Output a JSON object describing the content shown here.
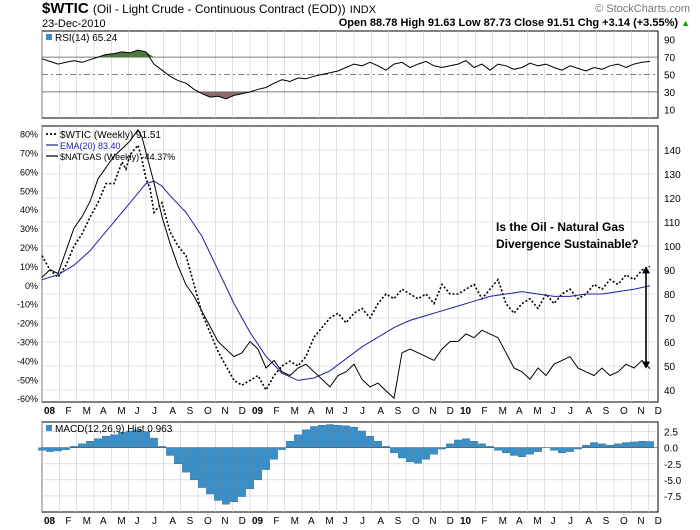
{
  "header": {
    "symbol": "$WTIC",
    "name": "(Oil - Light Crude - Continuous Contract (EOD))",
    "exchange": "INDX",
    "date": "23-Dec-2010",
    "watermark": "© StockCharts.com",
    "ohlc": "Open 88.78   High 91.63   Low 87.73   Close 91.51   Chg +3.14 (+3.55%)",
    "ohlc_icon": "up-triangle-icon"
  },
  "colors": {
    "panel_border": "#000000",
    "grid": "#cccccc",
    "rsi_line": "#000000",
    "rsi_overbought_fill": "#4a7a3a",
    "rsi_oversold_fill": "#8c6a6a",
    "ema_line": "#1f1f9f",
    "macd_hist": "#3a8fc8",
    "text": "#000000"
  },
  "chart_data": [
    {
      "id": "rsi",
      "type": "line",
      "title": "RSI(14) 65.24",
      "ylim": [
        0,
        100
      ],
      "ticks": [
        "90",
        "70",
        "50",
        "30",
        "10"
      ],
      "tick_values": [
        90,
        70,
        50,
        30,
        10
      ],
      "reference_lines": [
        70,
        50,
        30
      ],
      "series": [
        {
          "name": "RSI(14)",
          "x": [
            0,
            2,
            4,
            6,
            8,
            10,
            12,
            14,
            16,
            18,
            20,
            22,
            24,
            26,
            28,
            30,
            32,
            34,
            36,
            38,
            40,
            42,
            44,
            46,
            48,
            50,
            52,
            54,
            56,
            58,
            60,
            62,
            64,
            66,
            68,
            70,
            72,
            74,
            76,
            78,
            80,
            82,
            84,
            86,
            88,
            90,
            92,
            94,
            96,
            98,
            100,
            102,
            104,
            106,
            108,
            110,
            112,
            114,
            116,
            118,
            120,
            122,
            124,
            126,
            128,
            130,
            132,
            134,
            136,
            138,
            140,
            142,
            144,
            146,
            148,
            150,
            152
          ],
          "values": [
            68,
            65,
            62,
            64,
            66,
            64,
            67,
            70,
            73,
            74,
            76,
            75,
            78,
            76,
            62,
            55,
            48,
            43,
            40,
            33,
            28,
            24,
            25,
            22,
            26,
            28,
            30,
            33,
            35,
            40,
            44,
            42,
            46,
            45,
            48,
            50,
            52,
            54,
            58,
            62,
            60,
            64,
            60,
            55,
            62,
            64,
            58,
            62,
            65,
            60,
            58,
            60,
            62,
            66,
            58,
            62,
            55,
            62,
            60,
            56,
            58,
            63,
            60,
            62,
            58,
            55,
            60,
            57,
            54,
            58,
            56,
            60,
            62,
            58,
            62,
            64,
            65
          ]
        }
      ]
    },
    {
      "id": "price",
      "type": "line",
      "annotation": "Is the Oil - Natural Gas\nDivergence Sustainable?",
      "ylim_right": [
        35,
        150
      ],
      "ylim_left_pct": [
        -62,
        84
      ],
      "ticks_right": [
        "140",
        "130",
        "120",
        "110",
        "100",
        "90",
        "80",
        "70",
        "60",
        "50",
        "40"
      ],
      "tick_values_right": [
        140,
        130,
        120,
        110,
        100,
        90,
        80,
        70,
        60,
        50,
        40
      ],
      "ticks_left": [
        "80%",
        "70%",
        "60%",
        "50%",
        "40%",
        "30%",
        "20%",
        "10%",
        "0%",
        "-10%",
        "-20%",
        "-30%",
        "-40%",
        "-50%",
        "-60%"
      ],
      "tick_values_left": [
        80,
        70,
        60,
        50,
        40,
        30,
        20,
        10,
        0,
        -10,
        -20,
        -30,
        -40,
        -50,
        -60
      ],
      "x_ticks": [
        "08",
        "F",
        "M",
        "A",
        "M",
        "J",
        "J",
        "A",
        "S",
        "O",
        "N",
        "D",
        "09",
        "F",
        "M",
        "A",
        "M",
        "J",
        "J",
        "A",
        "S",
        "O",
        "N",
        "D",
        "10",
        "F",
        "M",
        "A",
        "M",
        "J",
        "J",
        "A",
        "S",
        "O",
        "N",
        "D"
      ],
      "x_tick_positions": [
        0,
        4.33,
        8.67,
        13,
        17.33,
        21.67,
        26,
        30.33,
        34.67,
        39,
        43.33,
        47.67,
        52,
        56.33,
        60.67,
        65,
        69.33,
        73.67,
        78,
        82.33,
        86.67,
        91,
        95.33,
        99.67,
        104,
        108.33,
        112.67,
        117,
        121.33,
        125.67,
        130,
        134.33,
        138.67,
        143,
        147.33,
        151.67
      ],
      "xlim": [
        0,
        154
      ],
      "series": [
        {
          "name": "$WTIC (Weekly) 91.51",
          "style": "dotted",
          "axis": "right",
          "x": [
            0,
            2,
            4,
            6,
            8,
            10,
            12,
            14,
            16,
            18,
            20,
            21,
            22,
            23,
            24,
            25,
            26,
            27,
            28,
            30,
            32,
            34,
            36,
            38,
            40,
            42,
            44,
            46,
            48,
            50,
            52,
            54,
            56,
            58,
            60,
            62,
            64,
            66,
            68,
            70,
            72,
            74,
            76,
            78,
            80,
            82,
            84,
            86,
            88,
            90,
            92,
            94,
            96,
            98,
            100,
            102,
            104,
            106,
            108,
            110,
            112,
            114,
            116,
            118,
            120,
            122,
            124,
            126,
            128,
            130,
            132,
            134,
            136,
            138,
            140,
            142,
            144,
            146,
            148,
            150,
            152
          ],
          "values": [
            96,
            90,
            87,
            92,
            100,
            105,
            112,
            118,
            126,
            126,
            135,
            132,
            138,
            140,
            142,
            136,
            128,
            124,
            114,
            118,
            106,
            100,
            96,
            84,
            72,
            64,
            56,
            50,
            44,
            42,
            44,
            46,
            40,
            46,
            50,
            52,
            50,
            54,
            62,
            66,
            70,
            72,
            68,
            72,
            74,
            70,
            76,
            80,
            78,
            82,
            80,
            78,
            80,
            76,
            84,
            80,
            80,
            82,
            84,
            78,
            82,
            86,
            76,
            72,
            76,
            78,
            74,
            80,
            76,
            80,
            82,
            78,
            80,
            84,
            82,
            86,
            84,
            88,
            86,
            90,
            91.51
          ]
        },
        {
          "name": "EMA(20) 83.40",
          "style": "solid",
          "axis": "right",
          "x": [
            0,
            4,
            8,
            12,
            16,
            20,
            24,
            26,
            28,
            30,
            32,
            36,
            40,
            44,
            48,
            52,
            56,
            60,
            64,
            68,
            72,
            76,
            80,
            84,
            88,
            92,
            96,
            100,
            104,
            108,
            112,
            116,
            120,
            124,
            128,
            132,
            136,
            140,
            144,
            148,
            152
          ],
          "values": [
            86,
            88,
            92,
            98,
            106,
            114,
            122,
            126,
            127,
            125,
            121,
            114,
            104,
            90,
            76,
            64,
            54,
            47,
            44,
            45,
            48,
            53,
            58,
            62,
            66,
            69,
            71,
            73,
            75,
            77,
            79,
            80,
            81,
            80,
            79,
            79,
            80,
            80,
            81,
            82,
            83.4
          ]
        },
        {
          "name": "$NATGAS (Weekly) -44.37%",
          "style": "solid",
          "axis": "left",
          "x": [
            0,
            2,
            4,
            6,
            8,
            10,
            12,
            14,
            16,
            18,
            20,
            22,
            24,
            25,
            26,
            27,
            28,
            30,
            32,
            34,
            36,
            38,
            40,
            42,
            44,
            46,
            48,
            50,
            52,
            54,
            56,
            58,
            60,
            62,
            64,
            66,
            68,
            70,
            72,
            74,
            76,
            78,
            80,
            82,
            84,
            86,
            88,
            90,
            92,
            94,
            96,
            98,
            100,
            102,
            104,
            106,
            108,
            110,
            112,
            114,
            116,
            118,
            120,
            122,
            124,
            126,
            128,
            130,
            132,
            134,
            136,
            138,
            140,
            142,
            144,
            146,
            148,
            150,
            152
          ],
          "values": [
            4,
            8,
            6,
            18,
            30,
            36,
            44,
            56,
            62,
            68,
            72,
            76,
            82,
            78,
            70,
            62,
            54,
            36,
            22,
            10,
            0,
            -6,
            -14,
            -22,
            -30,
            -34,
            -38,
            -36,
            -30,
            -34,
            -44,
            -40,
            -46,
            -48,
            -44,
            -42,
            -46,
            -50,
            -54,
            -48,
            -46,
            -42,
            -50,
            -54,
            -52,
            -56,
            -60,
            -36,
            -34,
            -36,
            -38,
            -40,
            -34,
            -30,
            -30,
            -26,
            -28,
            -24,
            -26,
            -28,
            -36,
            -44,
            -46,
            -50,
            -44,
            -48,
            -42,
            -40,
            -38,
            -44,
            -46,
            -48,
            -44,
            -48,
            -46,
            -42,
            -44,
            -40,
            -44.37
          ]
        }
      ]
    },
    {
      "id": "macd",
      "type": "bar",
      "title": "MACD(12,26,9) Hist 0.963",
      "ylim": [
        -10,
        4
      ],
      "ticks": [
        "2.5",
        "0.0",
        "-2.5",
        "-5.0",
        "-7.5"
      ],
      "tick_values": [
        2.5,
        0,
        -2.5,
        -5,
        -7.5
      ],
      "x": [
        0,
        2,
        4,
        6,
        8,
        10,
        12,
        14,
        16,
        18,
        20,
        22,
        24,
        26,
        28,
        30,
        32,
        34,
        36,
        38,
        40,
        42,
        44,
        46,
        48,
        50,
        52,
        54,
        56,
        58,
        60,
        62,
        64,
        66,
        68,
        70,
        72,
        74,
        76,
        78,
        80,
        82,
        84,
        86,
        88,
        90,
        92,
        94,
        96,
        98,
        100,
        102,
        104,
        106,
        108,
        110,
        112,
        114,
        116,
        118,
        120,
        122,
        124,
        126,
        128,
        130,
        132,
        134,
        136,
        138,
        140,
        142,
        144,
        146,
        148,
        150,
        152
      ],
      "values": [
        -0.4,
        -0.6,
        -0.5,
        -0.3,
        0.2,
        0.6,
        1.0,
        1.4,
        1.8,
        2.0,
        2.4,
        2.6,
        2.8,
        2.5,
        1.5,
        0.2,
        -1.2,
        -2.5,
        -3.8,
        -5.0,
        -6.2,
        -7.2,
        -8.2,
        -8.8,
        -8.4,
        -7.6,
        -6.4,
        -5.0,
        -3.4,
        -1.8,
        -0.3,
        1.0,
        2.0,
        2.8,
        3.3,
        3.5,
        3.6,
        3.5,
        3.4,
        3.2,
        2.6,
        1.8,
        1.0,
        0.2,
        -0.8,
        -1.6,
        -2.2,
        -2.4,
        -1.8,
        -1.0,
        -0.2,
        0.6,
        1.2,
        1.4,
        1.0,
        0.6,
        0.2,
        -0.4,
        -0.8,
        -1.2,
        -1.4,
        -1.0,
        -0.6,
        0.0,
        -0.4,
        -0.8,
        -0.6,
        -0.2,
        0.4,
        0.8,
        0.6,
        0.4,
        0.6,
        0.8,
        0.9,
        1.0,
        0.963
      ]
    }
  ]
}
